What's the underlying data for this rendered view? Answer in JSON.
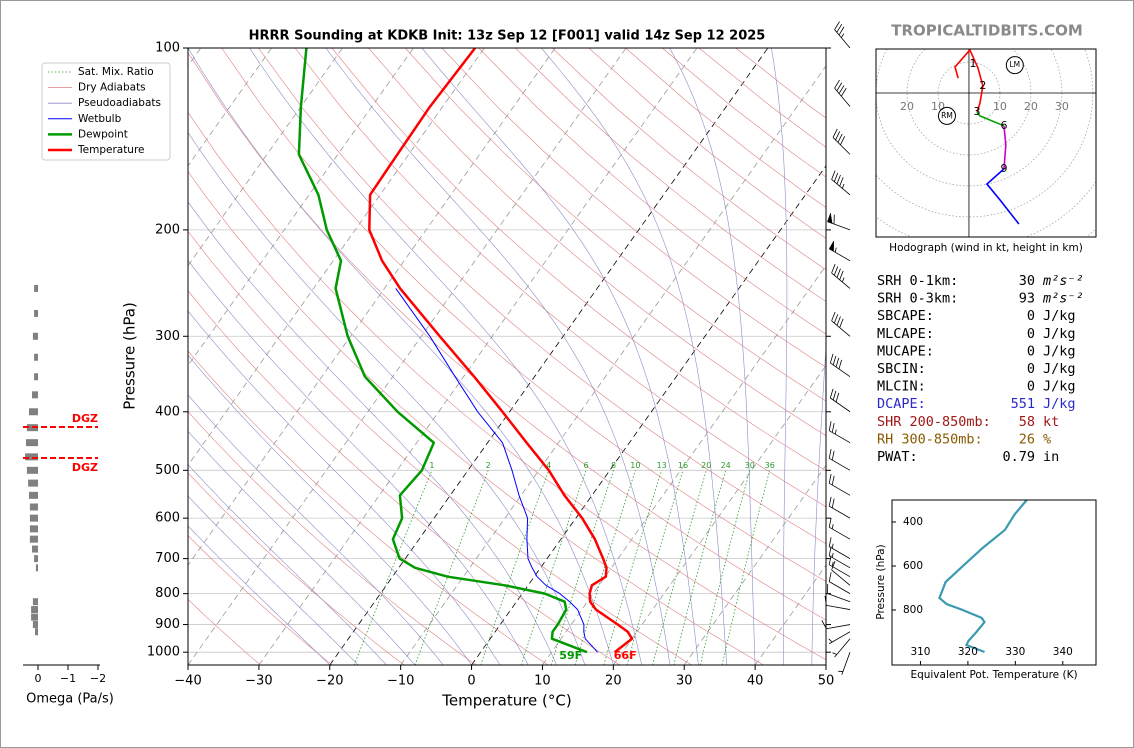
{
  "brand": "TROPICALTIDBITS.COM",
  "stats": {
    "rows": [
      {
        "label": "SRH 0-1km:",
        "value": 30,
        "unit": "m²s⁻²",
        "color": "#000000"
      },
      {
        "label": "SRH 0-3km:",
        "value": 93,
        "unit": "m²s⁻²",
        "color": "#000000"
      },
      {
        "label": "SBCAPE:",
        "value": 0,
        "unit": "J/kg",
        "color": "#000000"
      },
      {
        "label": "MLCAPE:",
        "value": 0,
        "unit": "J/kg",
        "color": "#000000"
      },
      {
        "label": "MUCAPE:",
        "value": 0,
        "unit": "J/kg",
        "color": "#000000"
      },
      {
        "label": "SBCIN:",
        "value": 0,
        "unit": "J/kg",
        "color": "#000000"
      },
      {
        "label": "MLCIN:",
        "value": 0,
        "unit": "J/kg",
        "color": "#000000"
      },
      {
        "label": "DCAPE:",
        "value": 551,
        "unit": "J/kg",
        "color": "#2a2acc"
      },
      {
        "label": "SHR 200-850mb:",
        "value": 58,
        "unit": "kt",
        "color": "#a01818"
      },
      {
        "label": "RH 300-850mb:",
        "value": 26,
        "unit": "%",
        "color": "#8a5a00"
      },
      {
        "label": "PWAT:",
        "value": 0.79,
        "unit": "in",
        "color": "#000000"
      }
    ]
  },
  "chart_data": [
    {
      "type": "skewt",
      "title": "HRRR Sounding at KDKB Init: 13z Sep 12 [F001] valid 14z Sep 12 2025",
      "xlabel": "Temperature (°C)",
      "ylabel": "Pressure (hPa)",
      "xlim": [
        -40,
        50
      ],
      "ylim": [
        1050,
        100
      ],
      "y_scale": "log",
      "grid": true,
      "xticks": [
        {
          "value": -40,
          "label": "−40"
        },
        {
          "value": -30,
          "label": "−30"
        },
        {
          "value": -20,
          "label": "−20"
        },
        {
          "value": -10,
          "label": "−10"
        },
        0,
        10,
        20,
        30,
        40,
        50
      ],
      "yticks": [
        100,
        200,
        300,
        400,
        500,
        600,
        700,
        800,
        900,
        1000
      ],
      "pressure": [
        1000,
        950,
        925,
        900,
        850,
        825,
        800,
        775,
        750,
        725,
        700,
        650,
        600,
        550,
        500,
        450,
        400,
        350,
        300,
        250,
        225,
        200,
        175,
        150,
        125,
        100
      ],
      "reference_lines": [
        {
          "name": "Sat. Mix. Ratio",
          "color": "#2e9a2e",
          "linestyle": "dotted"
        },
        {
          "name": "Dry Adiabats",
          "color": "#e08080",
          "linestyle": "solid"
        },
        {
          "name": "Pseudoadiabats",
          "color": "#8c8cc8",
          "linestyle": "solid"
        }
      ],
      "series": [
        {
          "name": "Wetbulb",
          "color": "#0000ff",
          "linewidth": 1,
          "values": [
            16.5,
            13.4,
            12.5,
            11.8,
            9.4,
            7.5,
            5.3,
            2.5,
            0.4,
            -1.2,
            -2.7,
            -4.8,
            -6.8,
            -10.3,
            -13.8,
            -17.9,
            -24.5,
            -31.2,
            -38.8,
            -48.4,
            null,
            null,
            null,
            null,
            null,
            null
          ]
        },
        {
          "name": "Dewpoint",
          "color": "#009a00",
          "linewidth": 2.5,
          "values": [
            15.0,
            8.7,
            8.1,
            8.1,
            7.8,
            6.8,
            3.2,
            -3.3,
            -12.2,
            -17.7,
            -20.8,
            -23.7,
            -24.5,
            -27.1,
            -26.5,
            -27.6,
            -35.8,
            -43.9,
            -50.4,
            -56.9,
            -58.9,
            -64.0,
            -68.7,
            -75.5,
            -80.0,
            -85.1
          ]
        },
        {
          "name": "Temperature",
          "color": "#ff0000",
          "linewidth": 2.5,
          "values": [
            18.9,
            20.0,
            18.7,
            16.6,
            12.0,
            10.4,
            9.5,
            9.0,
            10.1,
            9.3,
            7.9,
            4.8,
            0.9,
            -3.9,
            -8.6,
            -14.5,
            -21.0,
            -28.5,
            -37.4,
            -47.8,
            -53.1,
            -58.0,
            -61.4,
            -61.6,
            -61.8,
            -61.3
          ]
        }
      ],
      "mixing_ratio_labels": [
        1,
        2,
        4,
        6,
        8,
        10,
        13,
        16,
        20,
        24,
        30,
        36
      ],
      "surface_labels": [
        {
          "label": "59F",
          "color": "#009a00"
        },
        {
          "label": "66F",
          "color": "#ff0000"
        }
      ],
      "winds": {
        "pressure": [
          1000,
          950,
          925,
          900,
          850,
          825,
          800,
          775,
          750,
          725,
          700,
          650,
          600,
          550,
          500,
          450,
          400,
          350,
          300,
          250,
          225,
          200,
          175,
          150,
          125,
          100
        ],
        "speed": [
          5,
          5,
          5,
          10,
          10,
          10,
          10,
          10,
          15,
          15,
          15,
          15,
          20,
          20,
          20,
          25,
          30,
          40,
          40,
          45,
          55,
          60,
          45,
          40,
          40,
          35
        ],
        "direction": [
          200,
          220,
          240,
          260,
          280,
          290,
          300,
          310,
          300,
          300,
          300,
          300,
          300,
          300,
          300,
          300,
          305,
          305,
          310,
          310,
          300,
          290,
          310,
          315,
          320,
          320
        ]
      }
    },
    {
      "type": "bar",
      "orientation": "horizontal",
      "xlabel": "Omega (Pa/s)",
      "xlim": [
        0.5,
        -2
      ],
      "xticks": [
        0,
        {
          "value": -1,
          "label": "−1"
        },
        {
          "value": -2,
          "label": "−2"
        }
      ],
      "ylim": [
        1050,
        100
      ],
      "y_scale": "log",
      "color": "#808080",
      "y": [
        250,
        275,
        300,
        325,
        350,
        375,
        400,
        425,
        450,
        475,
        500,
        525,
        550,
        575,
        600,
        625,
        650,
        675,
        700,
        725,
        825,
        850,
        875,
        900,
        925
      ],
      "values": [
        0.13,
        0.13,
        0.17,
        0.13,
        0.13,
        0.2,
        0.3,
        0.37,
        0.4,
        0.43,
        0.37,
        0.33,
        0.3,
        0.27,
        0.27,
        0.27,
        0.27,
        0.2,
        0.13,
        0.07,
        0.17,
        0.23,
        0.23,
        0.17,
        0.1
      ],
      "dgz": {
        "label": "DGZ",
        "levels": [
          424,
          477
        ],
        "color": "#ff0000"
      }
    },
    {
      "type": "hodograph",
      "caption": "Hodograph (wind in kt, height in km)",
      "xlim": [
        -30,
        41
      ],
      "ylim": [
        -46.5,
        14.2
      ],
      "xticks": [
        {
          "value": -20,
          "label": "20"
        },
        {
          "value": -10,
          "label": "10"
        },
        10,
        20,
        30
      ],
      "segments": [
        {
          "color": "#ff0000",
          "u": [
            -3.5,
            -4.5,
            0.3,
            2.9,
            4.5,
            3.5,
            2.6
          ],
          "v": [
            4.8,
            8.4,
            13.9,
            8.1,
            2.3,
            -3.5,
            -6.1
          ]
        },
        {
          "color": "#00a000",
          "u": [
            2.6,
            3.5,
            11.3
          ],
          "v": [
            -6.1,
            -7.4,
            -10.6
          ]
        },
        {
          "color": "#cc00cc",
          "u": [
            11.3,
            11.9,
            11.3
          ],
          "v": [
            -10.6,
            -16.8,
            -24.5
          ]
        },
        {
          "color": "#0000ff",
          "u": [
            11.3,
            5.8,
            10.0,
            16.1
          ],
          "v": [
            -24.5,
            -29.4,
            -34.5,
            -42.3
          ]
        }
      ],
      "height_labels": [
        {
          "label": "1",
          "u": 1.3,
          "v": 9.3
        },
        {
          "label": "2",
          "u": 4.5,
          "v": 2.3
        },
        {
          "label": "3",
          "u": 2.6,
          "v": -6.1
        },
        {
          "label": "6",
          "u": 11.3,
          "v": -10.6
        },
        {
          "label": "9",
          "u": 11.3,
          "v": -24.5
        }
      ],
      "storm_motion": [
        {
          "label": "RM",
          "u": -7.1,
          "v": -7.4
        },
        {
          "label": "LM",
          "u": 14.8,
          "v": 9.0
        }
      ]
    },
    {
      "type": "line",
      "xlabel": "Equivalent Pot. Temperature (K)",
      "ylabel": "Pressure (hPa)",
      "xlim": [
        304,
        347
      ],
      "ylim": [
        1050,
        300
      ],
      "xticks": [
        310,
        320,
        330,
        340
      ],
      "yticks": [
        400,
        600,
        800
      ],
      "color": "#3a9ab0",
      "x": [
        332.4,
        329.9,
        327.8,
        323.1,
        318.5,
        315.3,
        314.0,
        315.5,
        318.9,
        322.9,
        323.5,
        321.8,
        320.1,
        319.7,
        323.5
      ],
      "y": [
        300,
        364,
        436,
        518,
        609,
        673,
        745,
        773,
        800,
        836,
        855,
        900,
        941,
        959,
        991
      ]
    }
  ]
}
